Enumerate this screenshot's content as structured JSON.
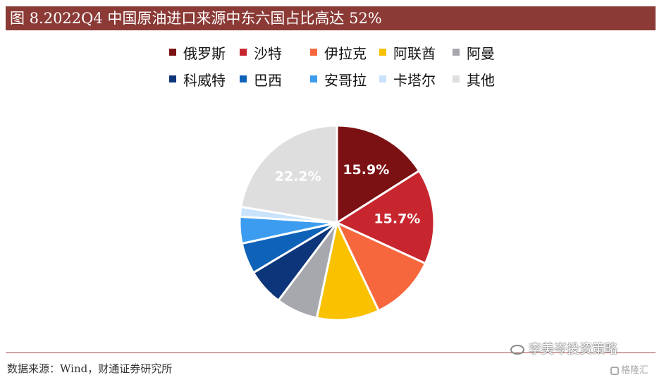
{
  "header": {
    "title": "图 8.2022Q4 中国原油进口来源中东六国占比高达 52%"
  },
  "footer": {
    "source": "数据来源：Wind，财通证券研究所"
  },
  "watermark": {
    "text": "李美岑投资策略",
    "brand": "格隆汇"
  },
  "icons": {
    "wechat": "wechat-icon",
    "brand": "gelonghui-logo-icon"
  },
  "chart_data": {
    "type": "pie",
    "title": "",
    "legend_position": "top",
    "start_angle": "12 o'clock",
    "direction": "clockwise",
    "slices": [
      {
        "name": "俄罗斯",
        "value": 15.9,
        "label": "15.9%",
        "color": "#7b1113"
      },
      {
        "name": "沙特",
        "value": 15.7,
        "label": "15.7%",
        "color": "#c8262f"
      },
      {
        "name": "伊拉克",
        "value": 11.0,
        "label": "",
        "color": "#f6673d"
      },
      {
        "name": "阿联酋",
        "value": 10.3,
        "label": "",
        "color": "#f9c100"
      },
      {
        "name": "阿曼",
        "value": 6.9,
        "label": "",
        "color": "#a6a8ad"
      },
      {
        "name": "科威特",
        "value": 6.1,
        "label": "",
        "color": "#0d3579"
      },
      {
        "name": "巴西",
        "value": 5.1,
        "label": "",
        "color": "#0e63b8"
      },
      {
        "name": "安哥拉",
        "value": 4.4,
        "label": "",
        "color": "#3c9df0"
      },
      {
        "name": "卡塔尔",
        "value": 1.6,
        "label": "",
        "color": "#c8e3fb"
      },
      {
        "name": "其他",
        "value": 22.2,
        "label": "22.2%",
        "color": "#dedede"
      }
    ]
  }
}
